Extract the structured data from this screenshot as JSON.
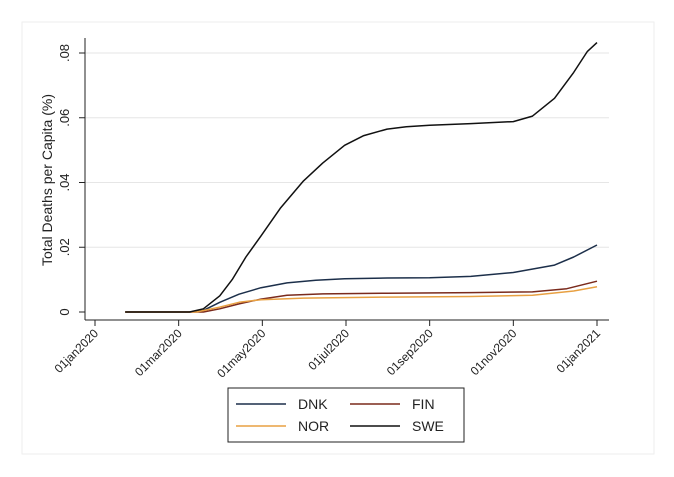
{
  "chart_data": {
    "type": "line",
    "title": "",
    "xlabel": "",
    "ylabel": "Total Deaths per Capita (%)",
    "x_ticks": [
      "01jan2020",
      "01mar2020",
      "01may2020",
      "01jul2020",
      "01sep2020",
      "01nov2020",
      "01jan2021"
    ],
    "xlim": [
      "2020-01-01",
      "2021-01-01"
    ],
    "y_ticks": [
      "0",
      ".02",
      ".04",
      ".06",
      ".08"
    ],
    "ylim": [
      0,
      0.085
    ],
    "grid": "horizontal",
    "legend_position": "bottom",
    "series": [
      {
        "name": "DNK",
        "color": "#1c2f4a",
        "points": [
          [
            "2020-01-23",
            0
          ],
          [
            "2020-03-10",
            0
          ],
          [
            "2020-03-20",
            0.0005
          ],
          [
            "2020-04-01",
            0.003
          ],
          [
            "2020-04-15",
            0.0055
          ],
          [
            "2020-05-01",
            0.0075
          ],
          [
            "2020-05-20",
            0.009
          ],
          [
            "2020-06-10",
            0.0098
          ],
          [
            "2020-07-01",
            0.0103
          ],
          [
            "2020-08-01",
            0.0105
          ],
          [
            "2020-09-01",
            0.0106
          ],
          [
            "2020-10-01",
            0.011
          ],
          [
            "2020-11-01",
            0.0122
          ],
          [
            "2020-12-01",
            0.0145
          ],
          [
            "2020-12-15",
            0.017
          ],
          [
            "2021-01-01",
            0.0207
          ]
        ]
      },
      {
        "name": "FIN",
        "color": "#7a2a1c",
        "points": [
          [
            "2020-01-23",
            0
          ],
          [
            "2020-03-20",
            0
          ],
          [
            "2020-04-01",
            0.001
          ],
          [
            "2020-04-15",
            0.0025
          ],
          [
            "2020-05-01",
            0.004
          ],
          [
            "2020-05-20",
            0.0052
          ],
          [
            "2020-06-15",
            0.0056
          ],
          [
            "2020-08-01",
            0.0058
          ],
          [
            "2020-10-01",
            0.006
          ],
          [
            "2020-11-15",
            0.0062
          ],
          [
            "2020-12-10",
            0.0072
          ],
          [
            "2021-01-01",
            0.0095
          ]
        ]
      },
      {
        "name": "NOR",
        "color": "#e8a042",
        "points": [
          [
            "2020-01-23",
            0
          ],
          [
            "2020-03-15",
            0
          ],
          [
            "2020-04-01",
            0.0015
          ],
          [
            "2020-04-15",
            0.003
          ],
          [
            "2020-05-01",
            0.0038
          ],
          [
            "2020-06-01",
            0.0043
          ],
          [
            "2020-08-01",
            0.0046
          ],
          [
            "2020-10-01",
            0.0048
          ],
          [
            "2020-11-15",
            0.0052
          ],
          [
            "2020-12-15",
            0.0065
          ],
          [
            "2021-01-01",
            0.0078
          ]
        ]
      },
      {
        "name": "SWE",
        "color": "#111111",
        "points": [
          [
            "2020-01-23",
            0
          ],
          [
            "2020-03-10",
            0
          ],
          [
            "2020-03-20",
            0.001
          ],
          [
            "2020-04-01",
            0.005
          ],
          [
            "2020-04-10",
            0.01
          ],
          [
            "2020-04-20",
            0.017
          ],
          [
            "2020-05-01",
            0.0235
          ],
          [
            "2020-05-15",
            0.032
          ],
          [
            "2020-06-01",
            0.0405
          ],
          [
            "2020-06-15",
            0.046
          ],
          [
            "2020-07-01",
            0.0515
          ],
          [
            "2020-07-15",
            0.0545
          ],
          [
            "2020-08-01",
            0.0565
          ],
          [
            "2020-08-15",
            0.0572
          ],
          [
            "2020-09-01",
            0.0577
          ],
          [
            "2020-10-01",
            0.0582
          ],
          [
            "2020-11-01",
            0.0588
          ],
          [
            "2020-11-15",
            0.0605
          ],
          [
            "2020-12-01",
            0.066
          ],
          [
            "2020-12-15",
            0.074
          ],
          [
            "2020-12-25",
            0.0805
          ],
          [
            "2021-01-01",
            0.0832
          ]
        ]
      }
    ]
  }
}
